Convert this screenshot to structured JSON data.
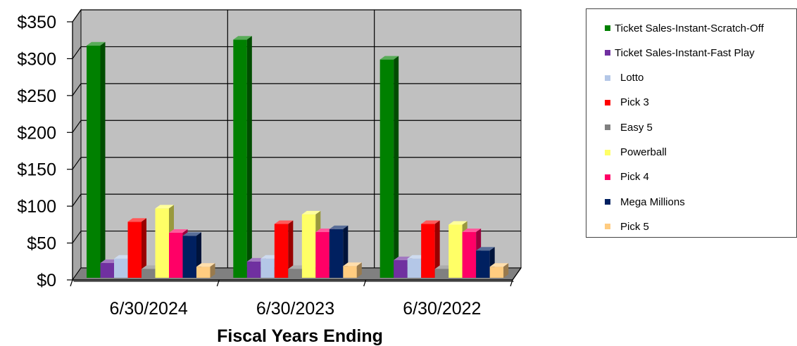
{
  "chart_data": {
    "type": "bar",
    "subtype": "3d-clustered-column",
    "xlabel": "Fiscal Years Ending",
    "ylabel": "",
    "ylim": [
      0,
      350
    ],
    "yticks": [
      0,
      50,
      100,
      150,
      200,
      250,
      300,
      350
    ],
    "ytick_labels": [
      "$0",
      "$50",
      "$100",
      "$150",
      "$200",
      "$250",
      "$300",
      "$350"
    ],
    "categories": [
      "6/30/2024",
      "6/30/2023",
      "6/30/2022"
    ],
    "grid": true,
    "legend_position": "right",
    "series": [
      {
        "name": "Ticket Sales-Instant-Scratch-Off",
        "color": "#008000",
        "values": [
          315,
          323,
          296
        ]
      },
      {
        "name": "Ticket Sales-Instant-Fast Play",
        "color": "#7030A0",
        "values": [
          20,
          22,
          24
        ]
      },
      {
        "name": "Lotto",
        "color": "#B4C7E7",
        "values": [
          26,
          26,
          26
        ]
      },
      {
        "name": "Pick 3",
        "color": "#FF0000",
        "values": [
          76,
          73,
          73
        ]
      },
      {
        "name": "Easy 5",
        "color": "#808080",
        "values": [
          12,
          12,
          12
        ]
      },
      {
        "name": "Powerball",
        "color": "#FFFF66",
        "values": [
          94,
          86,
          72
        ]
      },
      {
        "name": "Pick 4",
        "color": "#FF0066",
        "values": [
          61,
          62,
          62
        ]
      },
      {
        "name": "Mega Millions",
        "color": "#002060",
        "values": [
          57,
          66,
          37
        ]
      },
      {
        "name": "Pick 5",
        "color": "#FFCC80",
        "values": [
          15,
          16,
          15
        ]
      }
    ]
  }
}
